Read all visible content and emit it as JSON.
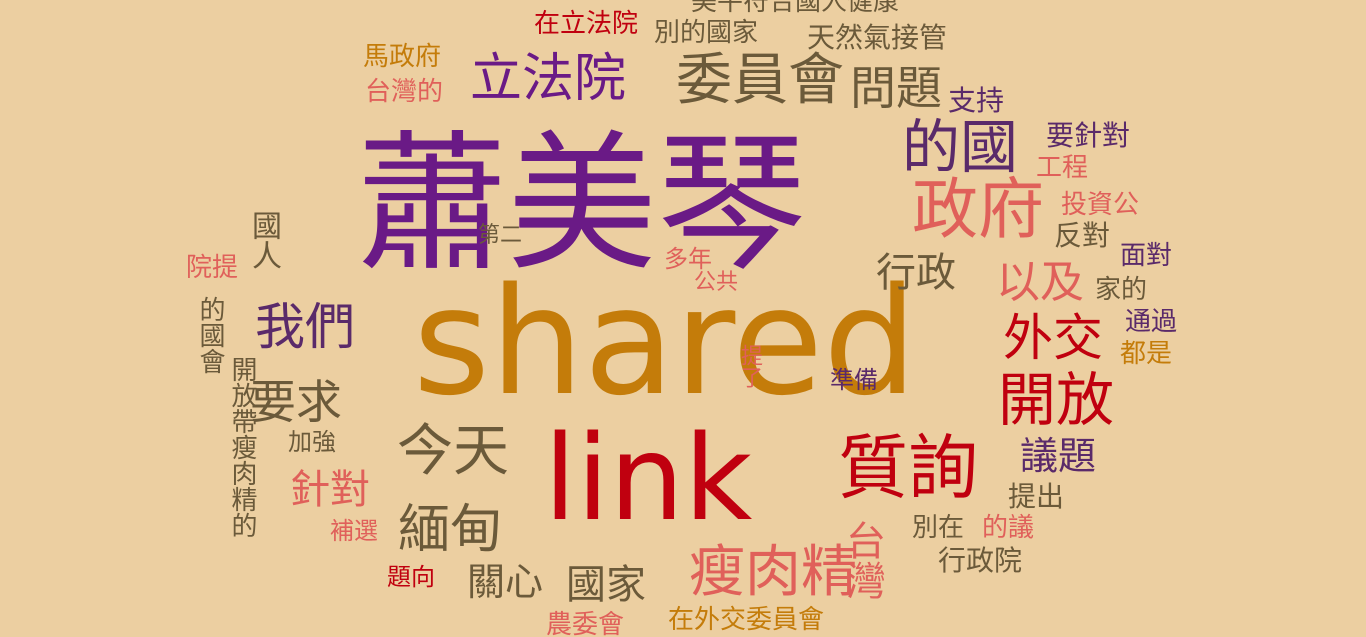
{
  "colors": {
    "background": "#eccfa1",
    "purple": "#6a1a86",
    "orange": "#c47c0a",
    "red": "#c0000f",
    "brown": "#6b5a3a",
    "salmon": "#e0605a",
    "dark_purple": "#5a2a6a"
  },
  "words": [
    {
      "id": "xiao-mei-qin",
      "text": "蕭美琴",
      "color": "#6a1a86"
    },
    {
      "id": "shared",
      "text": "shared",
      "color": "#c47c0a"
    },
    {
      "id": "link",
      "text": "link",
      "color": "#c0000f"
    },
    {
      "id": "zheng-fu",
      "text": "政府",
      "color": "#e0605a"
    },
    {
      "id": "de-guo",
      "text": "的國",
      "color": "#5a2a6a"
    },
    {
      "id": "li-fa-yuan",
      "text": "立法院",
      "color": "#6a1a86"
    },
    {
      "id": "wei-yuan-hui",
      "text": "委員會",
      "color": "#6b5a3a"
    },
    {
      "id": "wen-ti",
      "text": "問題",
      "color": "#6b5a3a"
    },
    {
      "id": "zhi-xun",
      "text": "質詢",
      "color": "#c0000f"
    },
    {
      "id": "jin-tian",
      "text": "今天",
      "color": "#6b5a3a"
    },
    {
      "id": "shou-rou-jing",
      "text": "瘦肉精",
      "color": "#e0605a"
    },
    {
      "id": "mian-dian",
      "text": "緬甸",
      "color": "#6b5a3a"
    },
    {
      "id": "kai-fang",
      "text": "開放",
      "color": "#c0000f"
    },
    {
      "id": "wai-jiao",
      "text": "外交",
      "color": "#c0000f"
    },
    {
      "id": "wo-men",
      "text": "我們",
      "color": "#5a2a6a"
    },
    {
      "id": "yao-qiu",
      "text": "要求",
      "color": "#6b5a3a"
    },
    {
      "id": "yi-ji",
      "text": "以及",
      "color": "#e0605a"
    },
    {
      "id": "xing-zheng",
      "text": "行政",
      "color": "#6b5a3a"
    },
    {
      "id": "tai-wan",
      "text": "台灣",
      "color": "#e0605a"
    },
    {
      "id": "yi-ti",
      "text": "議題",
      "color": "#5a2a6a"
    },
    {
      "id": "guo-jia",
      "text": "國家",
      "color": "#6b5a3a"
    },
    {
      "id": "guan-xin",
      "text": "關心",
      "color": "#6b5a3a"
    },
    {
      "id": "zhen-dui",
      "text": "針對",
      "color": "#e0605a"
    },
    {
      "id": "ma-zheng-fu",
      "text": "馬政府",
      "color": "#c47c0a"
    },
    {
      "id": "tai-wan-de",
      "text": "台灣的",
      "color": "#e0605a"
    },
    {
      "id": "zai-li-fa-yuan",
      "text": "在立法院",
      "color": "#c0000f"
    },
    {
      "id": "bie-de-guo-jia",
      "text": "別的國家",
      "color": "#6b5a3a"
    },
    {
      "id": "tian-ran-qi",
      "text": "天然氣接管",
      "color": "#6b5a3a"
    },
    {
      "id": "mei-fu-he",
      "text": "美牛符合國人健康",
      "color": "#6b5a3a"
    },
    {
      "id": "zhi-chi",
      "text": "支持",
      "color": "#5a2a6a"
    },
    {
      "id": "yao-zhen-dui",
      "text": "要針對",
      "color": "#5a2a6a"
    },
    {
      "id": "gong-cheng",
      "text": "工程",
      "color": "#e0605a"
    },
    {
      "id": "tou-zi-gong",
      "text": "投資公",
      "color": "#e0605a"
    },
    {
      "id": "fan-dui",
      "text": "反對",
      "color": "#6b5a3a"
    },
    {
      "id": "mian-dui",
      "text": "面對",
      "color": "#5a2a6a"
    },
    {
      "id": "jia-de",
      "text": "家的",
      "color": "#6b5a3a"
    },
    {
      "id": "tong-guo",
      "text": "通過",
      "color": "#5a2a6a"
    },
    {
      "id": "dou-shi",
      "text": "都是",
      "color": "#c47c0a"
    },
    {
      "id": "di-er",
      "text": "第二",
      "color": "#6b5a3a"
    },
    {
      "id": "duo-nian",
      "text": "多年",
      "color": "#e0605a"
    },
    {
      "id": "gong-gong",
      "text": "公共",
      "color": "#e0605a"
    },
    {
      "id": "zhun-bei",
      "text": "準備",
      "color": "#5a2a6a"
    },
    {
      "id": "ti-le",
      "text": "提了",
      "color": "#e0605a"
    },
    {
      "id": "ti-chu",
      "text": "提出",
      "color": "#6b5a3a"
    },
    {
      "id": "bie-zai",
      "text": "別在",
      "color": "#6b5a3a"
    },
    {
      "id": "de-yi",
      "text": "的議",
      "color": "#e0605a"
    },
    {
      "id": "xing-zheng-yuan",
      "text": "行政院",
      "color": "#6b5a3a"
    },
    {
      "id": "zai-wai-jiao",
      "text": "在外交委員會",
      "color": "#c47c0a"
    },
    {
      "id": "nong-wei-hui",
      "text": "農委會",
      "color": "#e0605a"
    },
    {
      "id": "ti-xiang",
      "text": "題向",
      "color": "#c0000f"
    },
    {
      "id": "bu-xuan",
      "text": "補選",
      "color": "#e0605a"
    },
    {
      "id": "jia-qiang",
      "text": "加強",
      "color": "#6b5a3a"
    },
    {
      "id": "guo-ren",
      "text": "國人",
      "color": "#6b5a3a"
    },
    {
      "id": "yuan-ti",
      "text": "院提",
      "color": "#e0605a"
    },
    {
      "id": "de-guo-hui",
      "text": "的國會",
      "color": "#6b5a3a"
    },
    {
      "id": "kai-fang-dai",
      "text": "開放帶瘦肉精的",
      "color": "#6b5a3a"
    }
  ]
}
